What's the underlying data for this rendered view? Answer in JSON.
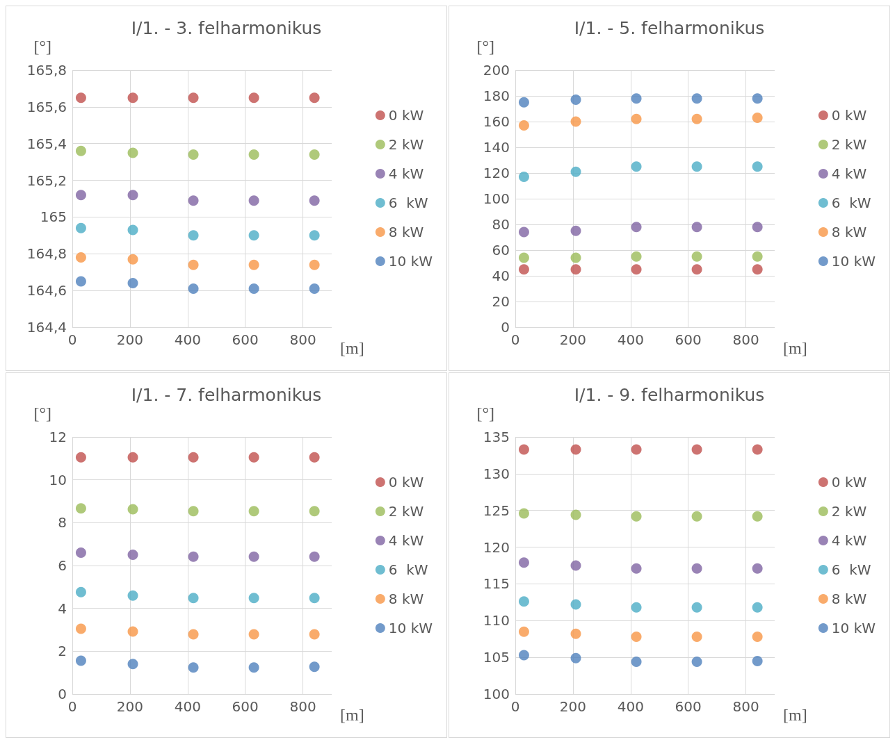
{
  "chart_data": [
    {
      "type": "scatter",
      "title": "I/1. - 3. felharmonikus",
      "xlabel": "[m]",
      "ylabel": "[°]",
      "x": [
        30,
        210,
        420,
        630,
        840
      ],
      "xlim": [
        0,
        900
      ],
      "xticks": [
        0,
        200,
        400,
        600,
        800
      ],
      "ylim": [
        164.4,
        165.8
      ],
      "yticks": [
        {
          "value": 164.4,
          "label": "164,4"
        },
        {
          "value": 164.6,
          "label": "164,6"
        },
        {
          "value": 164.8,
          "label": "164,8"
        },
        165,
        {
          "value": 165.2,
          "label": "165,2"
        },
        {
          "value": 165.4,
          "label": "165,4"
        },
        {
          "value": 165.6,
          "label": "165,6"
        },
        {
          "value": 165.8,
          "label": "165,8"
        }
      ],
      "grid": true,
      "legend": "right",
      "marker": "circle",
      "series": [
        {
          "name": "0 kW",
          "color": "#c0504d",
          "values": [
            165.65,
            165.65,
            165.65,
            165.65,
            165.65
          ]
        },
        {
          "name": "2 kW",
          "color": "#9bbb59",
          "values": [
            165.36,
            165.35,
            165.34,
            165.34,
            165.34
          ]
        },
        {
          "name": "4 kW",
          "color": "#8064a2",
          "values": [
            165.12,
            165.12,
            165.09,
            165.09,
            165.09
          ]
        },
        {
          "name": "6  kW",
          "color": "#4bacc6",
          "values": [
            164.94,
            164.93,
            164.9,
            164.9,
            164.9
          ]
        },
        {
          "name": "8 kW",
          "color": "#f79646",
          "values": [
            164.78,
            164.77,
            164.74,
            164.74,
            164.74
          ]
        },
        {
          "name": "10 kW",
          "color": "#4f81bd",
          "values": [
            164.65,
            164.64,
            164.61,
            164.61,
            164.61
          ]
        }
      ]
    },
    {
      "type": "scatter",
      "title": "I/1. - 5. felharmonikus",
      "xlabel": "[m]",
      "ylabel": "[°]",
      "x": [
        30,
        210,
        420,
        630,
        840
      ],
      "xlim": [
        0,
        900
      ],
      "xticks": [
        0,
        200,
        400,
        600,
        800
      ],
      "ylim": [
        0,
        200
      ],
      "yticks": [
        0,
        20,
        40,
        60,
        80,
        100,
        120,
        140,
        160,
        180,
        200
      ],
      "grid": true,
      "legend": "right",
      "marker": "circle",
      "series": [
        {
          "name": "0 kW",
          "color": "#c0504d",
          "values": [
            45,
            45,
            45,
            45,
            45
          ]
        },
        {
          "name": "2 kW",
          "color": "#9bbb59",
          "values": [
            54,
            54,
            55,
            55,
            55
          ]
        },
        {
          "name": "4 kW",
          "color": "#8064a2",
          "values": [
            74,
            75,
            78,
            78,
            78
          ]
        },
        {
          "name": "6  kW",
          "color": "#4bacc6",
          "values": [
            117,
            121,
            125,
            125,
            125
          ]
        },
        {
          "name": "8 kW",
          "color": "#f79646",
          "values": [
            157,
            160,
            162,
            162,
            163
          ]
        },
        {
          "name": "10 kW",
          "color": "#4f81bd",
          "values": [
            175,
            177,
            178,
            178,
            178
          ]
        }
      ]
    },
    {
      "type": "scatter",
      "title": "I/1. - 7. felharmonikus",
      "xlabel": "[m]",
      "ylabel": "[°]",
      "x": [
        30,
        210,
        420,
        630,
        840
      ],
      "xlim": [
        0,
        900
      ],
      "xticks": [
        0,
        200,
        400,
        600,
        800
      ],
      "ylim": [
        0,
        12
      ],
      "yticks": [
        0,
        2,
        4,
        6,
        8,
        10,
        12
      ],
      "grid": true,
      "legend": "right",
      "marker": "circle",
      "series": [
        {
          "name": "0 kW",
          "color": "#c0504d",
          "values": [
            11.05,
            11.05,
            11.05,
            11.05,
            11.05
          ]
        },
        {
          "name": "2 kW",
          "color": "#9bbb59",
          "values": [
            8.67,
            8.63,
            8.54,
            8.54,
            8.54
          ]
        },
        {
          "name": "4 kW",
          "color": "#8064a2",
          "values": [
            6.6,
            6.5,
            6.41,
            6.41,
            6.41
          ]
        },
        {
          "name": "6  kW",
          "color": "#4bacc6",
          "values": [
            4.76,
            4.6,
            4.48,
            4.48,
            4.48
          ]
        },
        {
          "name": "8 kW",
          "color": "#f79646",
          "values": [
            3.05,
            2.92,
            2.79,
            2.79,
            2.79
          ]
        },
        {
          "name": "10 kW",
          "color": "#4f81bd",
          "values": [
            1.56,
            1.4,
            1.24,
            1.24,
            1.27
          ]
        }
      ]
    },
    {
      "type": "scatter",
      "title": "I/1. - 9. felharmonikus",
      "xlabel": "[m]",
      "ylabel": "[°]",
      "x": [
        30,
        210,
        420,
        630,
        840
      ],
      "xlim": [
        0,
        900
      ],
      "xticks": [
        0,
        200,
        400,
        600,
        800
      ],
      "ylim": [
        100,
        135
      ],
      "yticks": [
        100,
        105,
        110,
        115,
        120,
        125,
        130,
        135
      ],
      "grid": true,
      "legend": "right",
      "marker": "circle",
      "series": [
        {
          "name": "0 kW",
          "color": "#c0504d",
          "values": [
            133.3,
            133.3,
            133.3,
            133.3,
            133.3
          ]
        },
        {
          "name": "2 kW",
          "color": "#9bbb59",
          "values": [
            124.6,
            124.4,
            124.2,
            124.2,
            124.2
          ]
        },
        {
          "name": "4 kW",
          "color": "#8064a2",
          "values": [
            117.9,
            117.5,
            117.1,
            117.1,
            117.1
          ]
        },
        {
          "name": "6  kW",
          "color": "#4bacc6",
          "values": [
            112.6,
            112.2,
            111.8,
            111.8,
            111.8
          ]
        },
        {
          "name": "8 kW",
          "color": "#f79646",
          "values": [
            108.5,
            108.2,
            107.8,
            107.8,
            107.8
          ]
        },
        {
          "name": "10 kW",
          "color": "#4f81bd",
          "values": [
            105.3,
            104.9,
            104.4,
            104.4,
            104.5
          ]
        }
      ]
    }
  ]
}
